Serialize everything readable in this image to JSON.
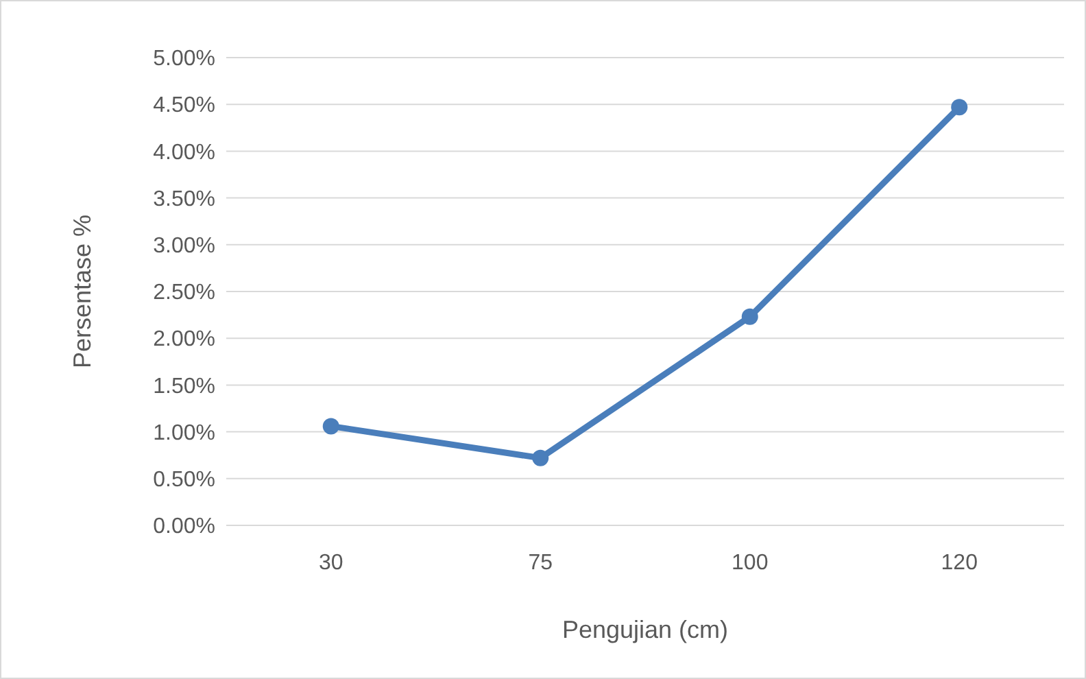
{
  "chart_data": {
    "type": "line",
    "xlabel": "Pengujian (cm)",
    "ylabel": "Persentase %",
    "categories": [
      "30",
      "75",
      "100",
      "120"
    ],
    "series": [
      {
        "color": "#4a7ebb",
        "values": [
          1.06,
          0.72,
          2.23,
          4.47
        ]
      }
    ],
    "ylim": [
      0,
      5
    ],
    "yticks": [
      {
        "value": 0,
        "label": "0.00%"
      },
      {
        "value": 0.5,
        "label": "0.50%"
      },
      {
        "value": 1,
        "label": "1.00%"
      },
      {
        "value": 1.5,
        "label": "1.50%"
      },
      {
        "value": 2,
        "label": "2.00%"
      },
      {
        "value": 2.5,
        "label": "2.50%"
      },
      {
        "value": 3,
        "label": "3.00%"
      },
      {
        "value": 3.5,
        "label": "3.50%"
      },
      {
        "value": 4,
        "label": "4.00%"
      },
      {
        "value": 4.5,
        "label": "4.50%"
      },
      {
        "value": 5,
        "label": "5.00%"
      }
    ],
    "grid": "y",
    "marker": "circle",
    "line_style": "solid"
  }
}
